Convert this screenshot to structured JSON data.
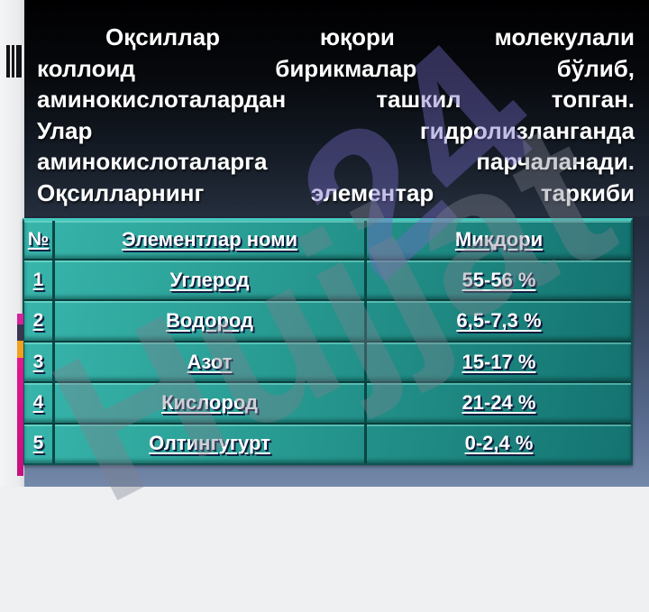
{
  "slide": {
    "kind": "presentation-slide",
    "language": "uzbek-cyrillic"
  },
  "paragraph": {
    "lines": [
      "Оқсиллар юқори молекулали",
      "коллоид бирикмалар бўлиб,",
      "аминокислоталардан ташкил топган.",
      "Улар гидролизланганда",
      "аминокислоталарга парчаланади.",
      "Оқсилларнинг элементар таркиби"
    ],
    "full_text": "Оқсиллар юқори молекулали коллоид бирикмалар бўлиб, аминокислоталардан ташкил топган. Улар гидролизланганда аминокислоталарга парчаланади. Оқсилларнинг элементар таркиби"
  },
  "table": {
    "headers": [
      "№",
      "Элементлар номи",
      "Миқдори"
    ],
    "rows": [
      {
        "num": "1",
        "name": "Углерод",
        "amount": "55-56 %"
      },
      {
        "num": "2",
        "name": "Водород",
        "amount": "6,5-7,3 %"
      },
      {
        "num": "3",
        "name": "Азот",
        "amount": "15-17 %"
      },
      {
        "num": "4",
        "name": "Кислород",
        "amount": "21-24 %"
      },
      {
        "num": "5",
        "name": "Олтингугурт",
        "amount": "0-2,4 %"
      }
    ]
  },
  "watermark": {
    "main": "Hujjat",
    "secondary": "24"
  },
  "decorations": {
    "barcode_icon": "vertical-black-bars",
    "stripe_segments": [
      "magenta-cap",
      "navy",
      "orange",
      "magenta"
    ]
  },
  "colors": {
    "panel_top": "#000001",
    "panel_bottom": "#252e3d",
    "table_teal_light": "#38b5ab",
    "table_teal_dark": "#147370",
    "table_border": "#0a4644",
    "backdrop_bottom": "#7488aa",
    "stripe_magenta": "#e0188f",
    "stripe_orange": "#f2a01d",
    "stripe_navy": "#3a3550",
    "watermark_purple": "#7368c3",
    "watermark_gray": "#7d828e",
    "text": "#ffffff"
  }
}
